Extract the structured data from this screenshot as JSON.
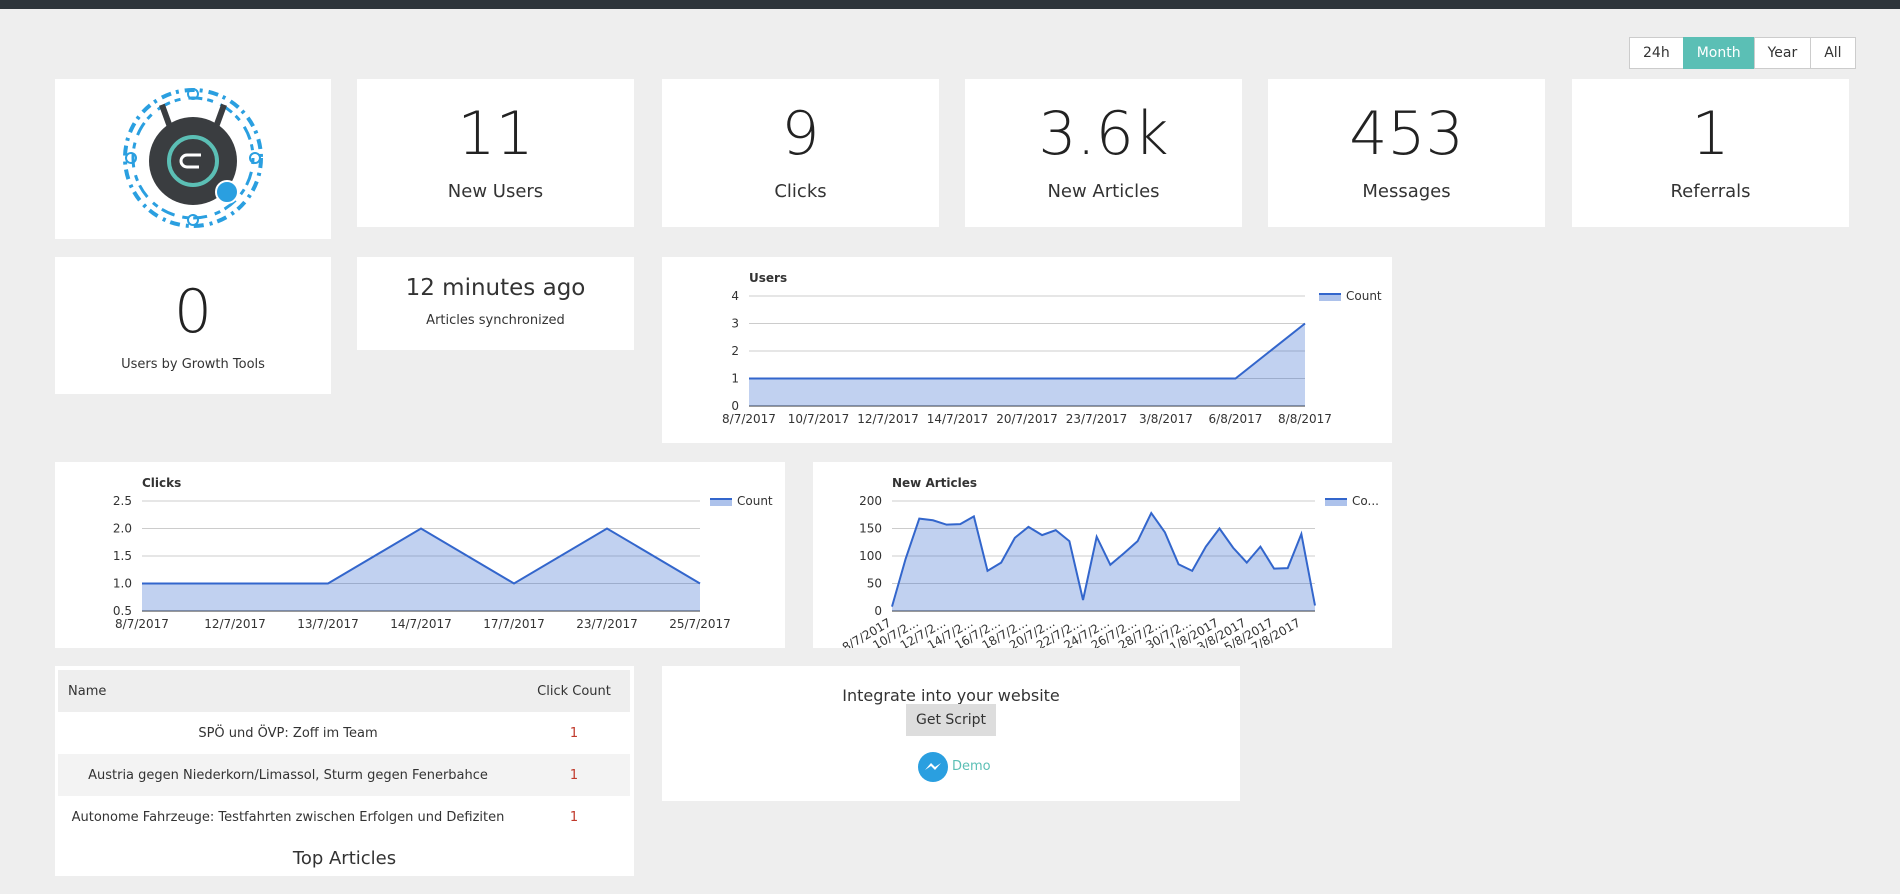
{
  "range_buttons": [
    "24h",
    "Month",
    "Year",
    "All"
  ],
  "active_range_index": 1,
  "stats": [
    {
      "value": 11,
      "label": "New Users"
    },
    {
      "value": 9,
      "label": "Clicks"
    },
    {
      "value": "3.6k",
      "label": "New Articles"
    },
    {
      "value": 453,
      "label": "Messages"
    },
    {
      "value": 1,
      "label": "Referrals"
    }
  ],
  "growth": {
    "value": 0,
    "label": "Users by Growth Tools"
  },
  "sync": {
    "time": "12 minutes ago",
    "label": "Articles synchronized"
  },
  "chart_data": [
    {
      "type": "area",
      "title": "Users",
      "categories": [
        "8/7/2017",
        "10/7/2017",
        "12/7/2017",
        "14/7/2017",
        "20/7/2017",
        "23/7/2017",
        "3/8/2017",
        "6/8/2017",
        "8/8/2017"
      ],
      "series": [
        {
          "name": "Count",
          "color": "#3366cc",
          "values": [
            1,
            1,
            1,
            1,
            1,
            1,
            1,
            1,
            3
          ]
        }
      ],
      "ylim": [
        0,
        4
      ],
      "yticks": [
        0,
        1,
        2,
        3,
        4
      ],
      "grid": true,
      "legend": "right"
    },
    {
      "type": "area",
      "title": "Clicks",
      "categories": [
        "8/7/2017",
        "12/7/2017",
        "13/7/2017",
        "14/7/2017",
        "17/7/2017",
        "23/7/2017",
        "25/7/2017"
      ],
      "series": [
        {
          "name": "Count",
          "color": "#3366cc",
          "values": [
            1,
            1,
            1,
            2,
            1,
            2,
            1
          ]
        }
      ],
      "ylim": [
        0.5,
        2.5
      ],
      "yticks": [
        0.5,
        {
          "value": 1,
          "label": "1.0"
        },
        1.5,
        {
          "value": 2,
          "label": "2.0"
        },
        2.5
      ],
      "grid": true,
      "legend": "right"
    },
    {
      "type": "area",
      "title": "New Articles",
      "categories": [
        "8/7/2017",
        null,
        "10/7/2...",
        null,
        "12/7/2...",
        null,
        "14/7/2...",
        null,
        "16/7/2...",
        null,
        "18/7/2...",
        null,
        "20/7/2...",
        null,
        "22/7/2...",
        null,
        "24/7/2...",
        null,
        "26/7/2...",
        null,
        "28/7/2...",
        null,
        "30/7/2...",
        null,
        "1/8/2017",
        null,
        "3/8/2017",
        null,
        "5/8/2017",
        null,
        "7/8/2017",
        null
      ],
      "series": [
        {
          "name": "Co...",
          "color": "#3366cc",
          "values": [
            8,
            95,
            168,
            165,
            157,
            158,
            172,
            73,
            88,
            133,
            153,
            138,
            147,
            127,
            20,
            135,
            84,
            105,
            127,
            178,
            143,
            85,
            73,
            117,
            150,
            115,
            88,
            117,
            77,
            78,
            140,
            10
          ]
        }
      ],
      "ylim": [
        0,
        200
      ],
      "yticks": [
        0,
        50,
        100,
        150,
        200
      ],
      "grid": true,
      "legend": "right"
    }
  ],
  "table": {
    "header": [
      "Name",
      "Click Count"
    ],
    "rows": [
      [
        "SPÖ und ÖVP: Zoff im Team",
        1
      ],
      [
        "Austria gegen Niederkorn/Limassol, Sturm gegen Fenerbahce",
        1
      ],
      [
        "Autonome Fahrzeuge: Testfahrten zwischen Erfolgen und Defiziten",
        1
      ]
    ],
    "title": "Top Articles"
  },
  "integrate": {
    "title": "Integrate into your website",
    "button": "Get Script",
    "demo": "Demo"
  }
}
